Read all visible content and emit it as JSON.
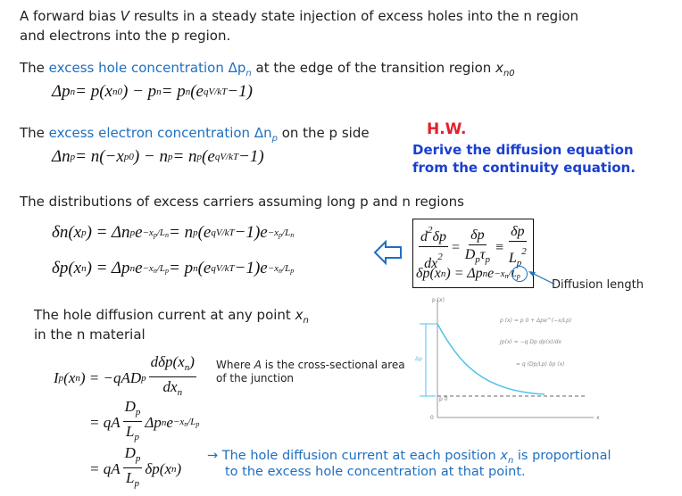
{
  "intro": {
    "line1_a": "A forward bias ",
    "line1_v": "V",
    "line1_b": " results in a steady state injection of excess holes into the n region",
    "line2": "and electrons into the p region."
  },
  "hole": {
    "a": "The ",
    "b": "excess hole concentration Δp",
    "b_sub": "n",
    "c": " at the edge of the transition region ",
    "d": "x",
    "d_sub": "n0"
  },
  "eq1": [
    "Δp",
    {
      "sub": "n"
    },
    " = p(x",
    {
      "sub": "n0"
    },
    ") − p",
    {
      "sub": "n"
    },
    " = p",
    {
      "sub": "n"
    },
    "(e",
    {
      "sup": "qV/kT"
    },
    " −1)"
  ],
  "electron": {
    "a": "The ",
    "b": "excess electron concentration Δn",
    "b_sub": "p",
    "c": " on the p side"
  },
  "eq2": [
    "Δn",
    {
      "sub": "p"
    },
    " = n(−x",
    {
      "sub": "p0"
    },
    ") − n",
    {
      "sub": "p"
    },
    " = n",
    {
      "sub": "p"
    },
    "(e",
    {
      "sup": "qV/kT"
    },
    " −1)"
  ],
  "homework": {
    "title": "H.W.",
    "line1": "Derive the diffusion equation",
    "line2": "from the continuity equation."
  },
  "distributions": "The distributions of excess carriers assuming long p and n regions",
  "eq3": [
    "δn(x",
    {
      "sub": "p"
    },
    ") = Δn",
    {
      "sub": "p"
    },
    "e",
    {
      "sup": [
        "−x",
        {
          "sub": "p"
        },
        "/L",
        {
          "sub": "n"
        }
      ]
    },
    " = n",
    {
      "sub": "p"
    },
    "(e",
    {
      "sup": "qV/kT"
    },
    " −1)e",
    {
      "sup": [
        "−x",
        {
          "sub": "p"
        },
        "/L",
        {
          "sub": "n"
        }
      ]
    }
  ],
  "eq4": [
    "δp(x",
    {
      "sub": "n"
    },
    ") = Δp",
    {
      "sub": "n"
    },
    "e",
    {
      "sup": [
        "−x",
        {
          "sub": "n"
        },
        "/L",
        {
          "sub": "p"
        }
      ]
    },
    " = p",
    {
      "sub": "n"
    },
    "(e",
    {
      "sup": "qV/kT"
    },
    " −1)e",
    {
      "sup": [
        "−x",
        {
          "sub": "n"
        },
        "/L",
        {
          "sub": "p"
        }
      ]
    }
  ],
  "box_eq1": [
    {
      "frac": [
        [
          "d",
          {
            "sup": "2"
          },
          "δp"
        ],
        [
          "dx",
          {
            "sup": "2"
          }
        ]
      ]
    },
    " = ",
    {
      "frac": [
        [
          "δp"
        ],
        [
          "D",
          {
            "sub": "p"
          },
          "τ",
          {
            "sub": "p"
          }
        ]
      ]
    },
    " ≡ ",
    {
      "frac": [
        [
          "δp"
        ],
        [
          "L",
          {
            "sub": "p"
          },
          {
            "sup": "2"
          }
        ]
      ]
    }
  ],
  "box_eq2": [
    "δp(x",
    {
      "sub": "n"
    },
    ") = Δp",
    {
      "sub": "n"
    },
    "e",
    {
      "sup": [
        "−x",
        {
          "sub": "n"
        },
        "/L",
        {
          "sub": "p"
        }
      ]
    }
  ],
  "diffusion_length": "Diffusion length",
  "graph": {
    "ylabel": "p (x)",
    "xlabel": "x",
    "delta": "Δp",
    "p0": "p 0",
    "zero": "0",
    "f1": "p (x) = p 0 + Δpe^(−x/Lp)",
    "f2": "Jp(x) = −q Dp dp(x)/dx",
    "f3": "= q (Dp/Lp) δp (x)",
    "curve_color": "#4fc3e8"
  },
  "current": {
    "line1_a": "The hole diffusion current at any point ",
    "line1_x": "x",
    "line1_sub": "n",
    "line2": "in the n material"
  },
  "eq5": [
    "I",
    {
      "sub": "p"
    },
    "(x",
    {
      "sub": "n"
    },
    ") = −qAD",
    {
      "sub": "p"
    },
    {
      "frac": [
        [
          "dδp(x",
          {
            "sub": "n"
          },
          ")"
        ],
        [
          "dx",
          {
            "sub": "n"
          }
        ]
      ]
    }
  ],
  "where": {
    "a": "Where ",
    "A": "A",
    "b": " is the cross-sectional area",
    "line2": "of the junction"
  },
  "eq6": [
    "= qA",
    {
      "frac": [
        [
          "D",
          {
            "sub": "p"
          }
        ],
        [
          "L",
          {
            "sub": "p"
          }
        ]
      ]
    },
    "Δp",
    {
      "sub": "n"
    },
    "e",
    {
      "sup": [
        "−x",
        {
          "sub": "n"
        },
        "/L",
        {
          "sub": "p"
        }
      ]
    }
  ],
  "eq7": [
    "= qA",
    {
      "frac": [
        [
          "D",
          {
            "sub": "p"
          }
        ],
        [
          "L",
          {
            "sub": "p"
          }
        ]
      ]
    },
    "δp(x",
    {
      "sub": "n"
    },
    ")"
  ],
  "conclusion": {
    "a": "→ The hole diffusion current at each position ",
    "x": "x",
    "sub": "n",
    "b": " is proportional",
    "line2": "to the excess hole concentration at that point."
  },
  "colors": {
    "accent_blue": "#1f6fc0",
    "hw_red": "#e3202a",
    "hw_blue": "#1a3fd0"
  }
}
